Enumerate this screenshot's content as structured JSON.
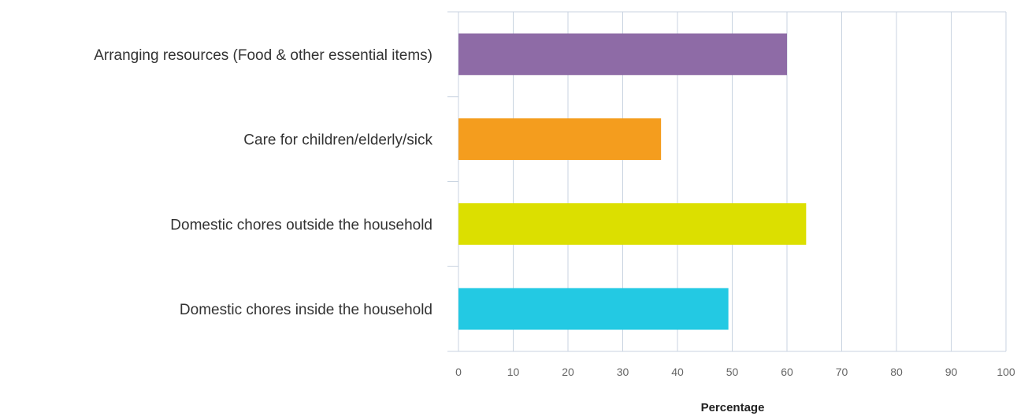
{
  "chart_data": {
    "type": "bar",
    "orientation": "horizontal",
    "categories": [
      "Arranging resources (Food & other essential items)",
      "Care for children/elderly/sick",
      "Domestic chores outside the household",
      "Domestic chores inside the household"
    ],
    "values": [
      60,
      37,
      63.5,
      49.3
    ],
    "colors": [
      "#8E6BA6",
      "#F49D1E",
      "#DCDF00",
      "#23C9E3"
    ],
    "xlabel": "Percentage",
    "ylabel": "",
    "title": "",
    "xlim": [
      0,
      100
    ],
    "xticks": [
      "0",
      "10",
      "20",
      "30",
      "40",
      "50",
      "60",
      "70",
      "80",
      "90",
      "100"
    ],
    "grid": true,
    "legend": "none"
  }
}
